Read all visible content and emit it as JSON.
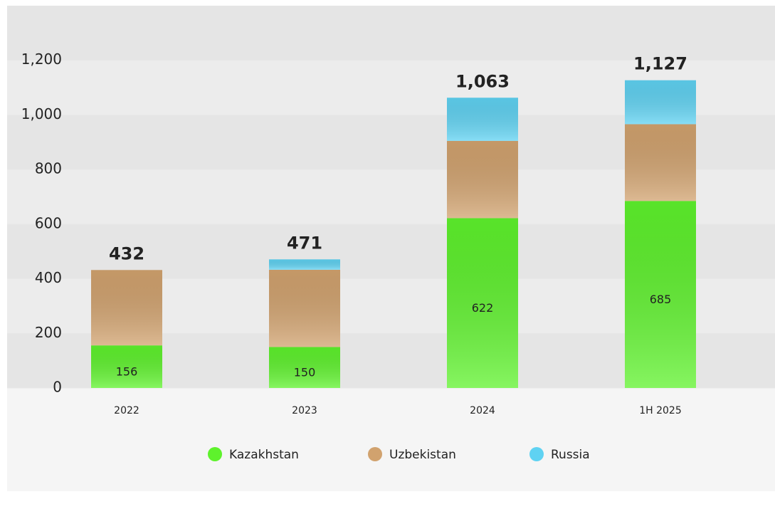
{
  "chart_data": {
    "type": "stacked_bar",
    "categories": [
      "2022",
      "2023",
      "2024",
      "1H 2025"
    ],
    "series": [
      {
        "name": "Kazakhstan",
        "color": "#5ef22c",
        "values": [
          156,
          150,
          622,
          685
        ],
        "data_labels": true
      },
      {
        "name": "Uzbekistan",
        "color": "#d1a26e",
        "values": [
          276,
          283,
          283,
          281
        ]
      },
      {
        "name": "Russia",
        "color": "#5fd2f2",
        "values": [
          0,
          38,
          158,
          161
        ]
      }
    ],
    "totals": {
      "values": [
        432,
        471,
        1063,
        1127
      ],
      "value_labels": [
        "432",
        "471",
        "1,063",
        "1,127"
      ]
    },
    "ylim": [
      0,
      1400
    ],
    "yticks": [
      0,
      200,
      400,
      600,
      800,
      {
        "value": 1000,
        "label": "1,000"
      },
      {
        "value": 1200,
        "label": "1,200"
      }
    ],
    "grid": "bands",
    "legend": "bottom"
  }
}
